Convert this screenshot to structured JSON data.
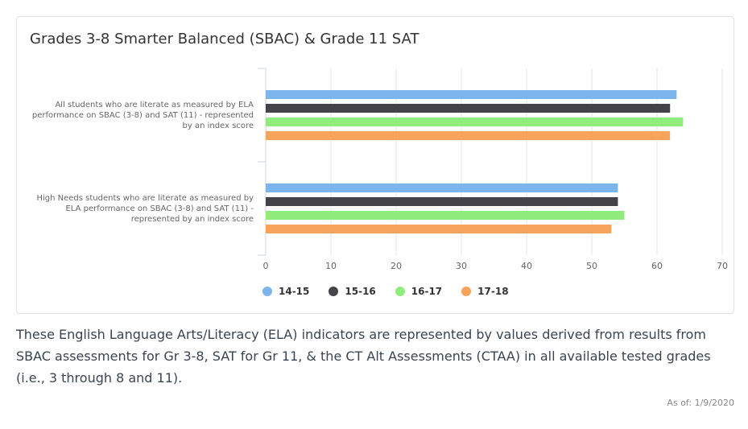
{
  "title": "Grades 3-8 Smarter Balanced (SBAC) & Grade 11 SAT",
  "description": "These English Language Arts/Literacy (ELA) indicators are represented by values derived from results from SBAC assessments for Gr 3-8, SAT for Gr 11, & the CT Alt Assessments (CTAA) in all available tested grades (i.e., 3 through 8 and 11).",
  "as_of": "As of: 1/9/2020",
  "chart_data": {
    "type": "bar",
    "orientation": "horizontal",
    "categories": [
      [
        "All students who are literate as measured by ELA",
        "performance on SBAC (3-8) and SAT (11) - represented",
        "by an index score"
      ],
      [
        "High Needs students who are literate as measured by",
        "ELA performance on SBAC (3-8) and SAT (11) -",
        "represented by an index score"
      ]
    ],
    "series": [
      {
        "name": "14-15",
        "color": "#7cb5ec",
        "values": [
          63,
          54
        ]
      },
      {
        "name": "15-16",
        "color": "#434348",
        "values": [
          62,
          54
        ]
      },
      {
        "name": "16-17",
        "color": "#90ed7d",
        "values": [
          64,
          55
        ]
      },
      {
        "name": "17-18",
        "color": "#f7a35c",
        "values": [
          62,
          53
        ]
      }
    ],
    "xlim": [
      0,
      70
    ],
    "xticks": [
      0,
      10,
      20,
      30,
      40,
      50,
      60,
      70
    ],
    "grid": true,
    "legend": "bottom"
  }
}
